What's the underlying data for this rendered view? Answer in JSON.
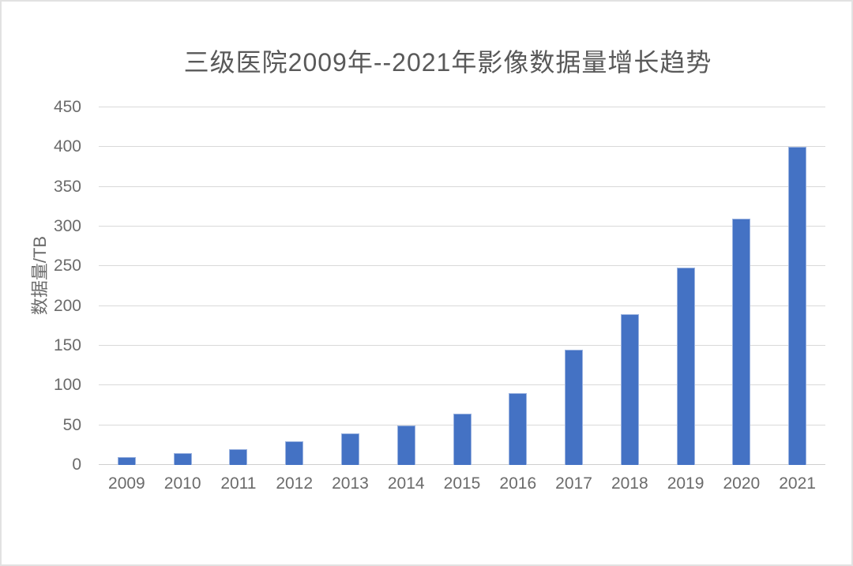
{
  "frame": {
    "border_color": "#E2E2E2",
    "background": "#FFFFFF"
  },
  "chart_data": {
    "type": "bar",
    "title": "三级医院2009年--2021年影像数据量增长趋势",
    "categories": [
      "2009",
      "2010",
      "2011",
      "2012",
      "2013",
      "2014",
      "2015",
      "2016",
      "2017",
      "2018",
      "2019",
      "2020",
      "2021"
    ],
    "values": [
      10,
      15,
      20,
      30,
      40,
      50,
      65,
      90,
      145,
      190,
      248,
      310,
      400
    ],
    "xlabel": "",
    "ylabel": "数据量/TB",
    "ylim": [
      0,
      450
    ],
    "yticks": [
      0,
      50,
      100,
      150,
      200,
      250,
      300,
      350,
      400,
      450
    ],
    "grid": true,
    "legend": "none",
    "colors": {
      "bar": "#4472C4",
      "bar_border": "#9BB3E0",
      "gridline": "#D9D9D9",
      "axis_line": "#CFCFCF",
      "title_text": "#595959",
      "tick_text": "#6B6B6B"
    }
  }
}
